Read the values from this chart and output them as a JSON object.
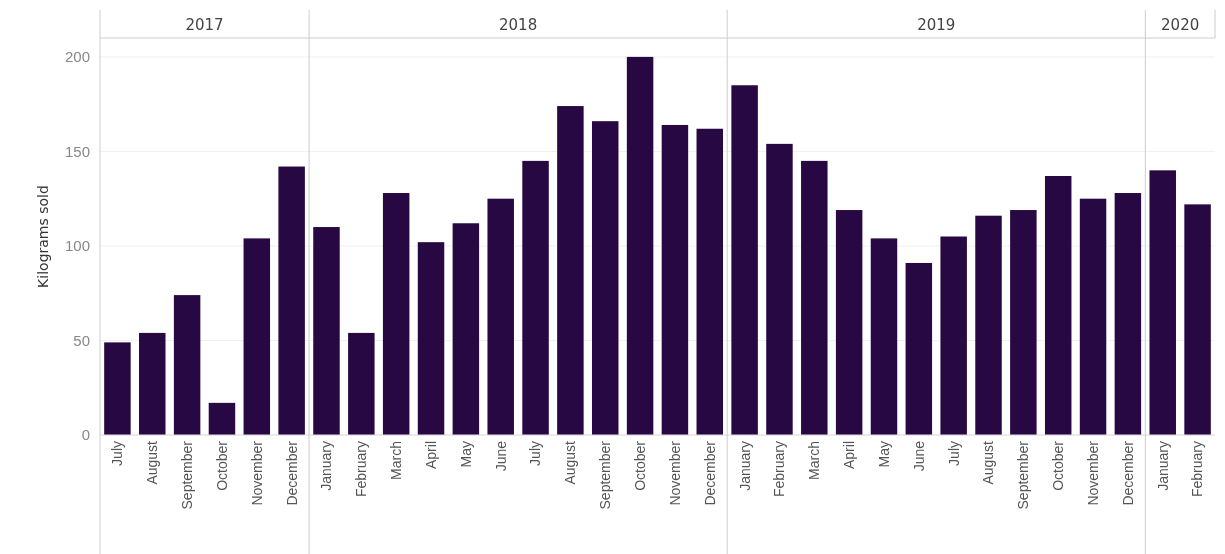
{
  "chart_data": [
    {
      "type": "bar",
      "title": "2017",
      "ylabel": "Kilograms sold",
      "categories": [
        "July",
        "August",
        "September",
        "October",
        "November",
        "December"
      ],
      "values": [
        49,
        54,
        74,
        17,
        104,
        142
      ],
      "color": "#280843",
      "ylim": [
        0,
        210
      ],
      "yticks": [
        0,
        50,
        100,
        150,
        200
      ],
      "grid": "y"
    },
    {
      "type": "bar",
      "title": "2018",
      "categories": [
        "January",
        "February",
        "March",
        "April",
        "May",
        "June",
        "July",
        "August",
        "September",
        "October",
        "November",
        "December"
      ],
      "values": [
        110,
        54,
        128,
        102,
        112,
        125,
        145,
        174,
        166,
        200,
        164,
        162
      ],
      "color": "#280843",
      "ylim": [
        0,
        210
      ],
      "yticks": [
        0,
        50,
        100,
        150,
        200
      ],
      "grid": "y",
      "tick_labels": "x"
    },
    {
      "type": "bar",
      "title": "2019",
      "categories": [
        "January",
        "February",
        "March",
        "April",
        "May",
        "June",
        "July",
        "August",
        "September",
        "October",
        "November",
        "December"
      ],
      "values": [
        185,
        154,
        145,
        119,
        104,
        91,
        105,
        116,
        119,
        137,
        125,
        128
      ],
      "color": "#280843",
      "ylim": [
        0,
        210
      ],
      "yticks": [
        0,
        50,
        100,
        150,
        200
      ],
      "grid": "y",
      "tick_labels": "x"
    },
    {
      "type": "bar",
      "title": "2020",
      "categories": [
        "January",
        "February"
      ],
      "values": [
        140,
        122
      ],
      "color": "#280843",
      "ylim": [
        0,
        210
      ],
      "yticks": [
        0,
        50,
        100,
        150,
        200
      ],
      "grid": "y",
      "tick_labels": "x"
    }
  ]
}
